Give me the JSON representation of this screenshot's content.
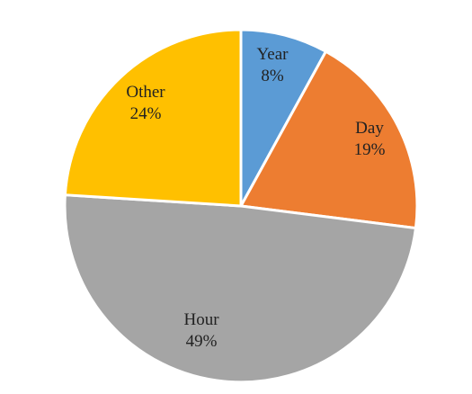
{
  "chart_data": {
    "type": "pie",
    "title": "",
    "slices": [
      {
        "label": "Year",
        "value": 8,
        "value_label": "8%",
        "color": "#5B9BD5"
      },
      {
        "label": "Day",
        "value": 19,
        "value_label": "19%",
        "color": "#ED7D31"
      },
      {
        "label": "Hour",
        "value": 49,
        "value_label": "49%",
        "color": "#A5A5A5"
      },
      {
        "label": "Other",
        "value": 24,
        "value_label": "24%",
        "color": "#FFC000"
      }
    ],
    "start_angle": "12 o'clock",
    "direction": "clockwise",
    "legend": "none",
    "slice_border_color": "#ffffff"
  }
}
